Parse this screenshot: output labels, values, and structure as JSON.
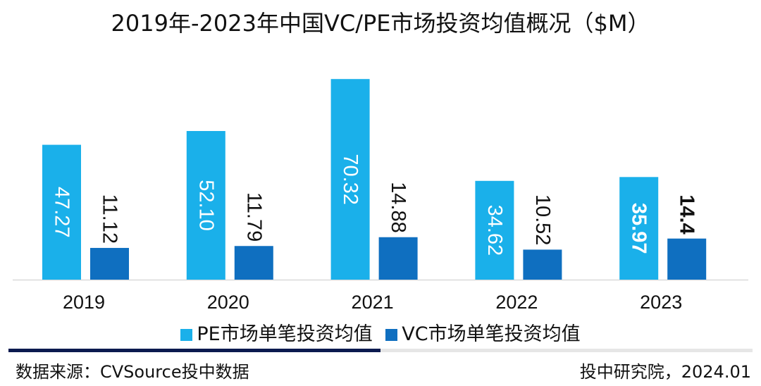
{
  "title": "2019年-2023年中国VC/PE市场投资均值概况（$M）",
  "chart_data": {
    "type": "bar",
    "title": "2019年-2023年中国VC/PE市场投资均值概况（$M）",
    "categories": [
      "2019",
      "2020",
      "2021",
      "2022",
      "2023"
    ],
    "series": [
      {
        "name": "PE市场单笔投资均值",
        "values": [
          47.27,
          52.1,
          70.32,
          34.62,
          35.97
        ],
        "labels": [
          "47.27",
          "52.10",
          "70.32",
          "34.62",
          "35.97"
        ],
        "color": "#1ab0ea"
      },
      {
        "name": "VC市场单笔投资均值",
        "values": [
          11.12,
          11.79,
          14.88,
          10.52,
          14.4
        ],
        "labels": [
          "11.12",
          "11.79",
          "14.88",
          "10.52",
          "14.4"
        ],
        "color": "#0f6fc0"
      }
    ],
    "ylim": [
      0,
      75
    ],
    "grid": false,
    "legend": "bottom"
  },
  "footer": {
    "source": "数据来源：CVSource投中数据",
    "credit": "投中研究院，2024.01"
  }
}
